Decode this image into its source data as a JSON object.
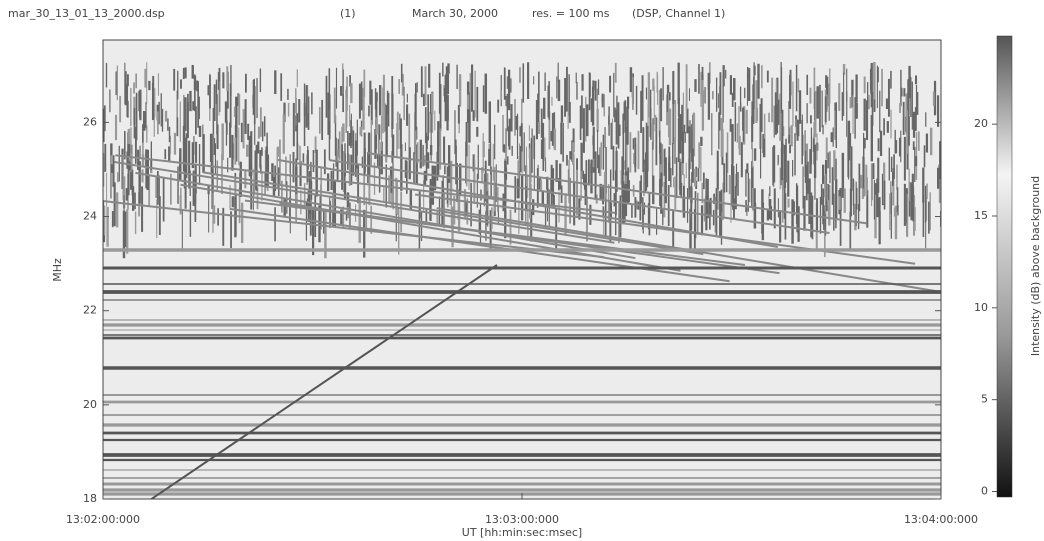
{
  "chart_data": {
    "type": "heatmap",
    "file_name": "mar_30_13_01_13_2000.dsp",
    "title_parts": [
      "(1)",
      "March 30, 2000",
      "res. = 100 ms",
      "(DSP, Channel 1)"
    ],
    "ylabel": "MHz",
    "xlabel": "UT [hh:min:sec:msec]",
    "xticks": [
      "13:02:00:000",
      "13:03:00:000",
      "13:04:00:000"
    ],
    "ylim": [
      18,
      27.75
    ],
    "yticks": [
      18,
      20,
      22,
      24,
      26
    ],
    "colorbar": {
      "label": "Intensity (dB) above background",
      "lim": [
        -0.3,
        24.8
      ],
      "ticks": [
        0,
        5,
        10,
        15,
        20
      ]
    }
  }
}
